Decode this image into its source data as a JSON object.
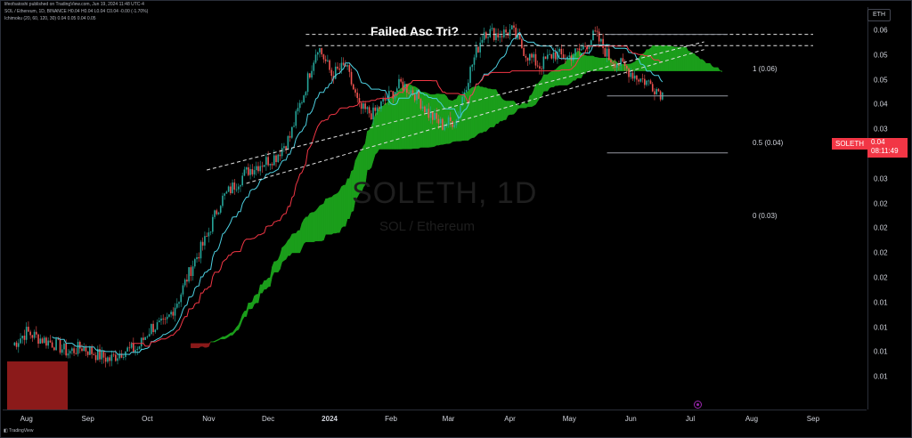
{
  "header": {
    "line1": "lifeofsatoshi published on TradingView.com, Jun 19, 2024 11:48 UTC-4",
    "line2": "SOL / Ethereum, 1D, BINANCE  H0.04  H0.04  L0.04  C0.04  -0.00 (-1.70%)",
    "line3": "Ichimoku (20, 60, 120, 30)  0.04  0.05  0.04  0.05"
  },
  "footer": {
    "logo_text": "TradingView"
  },
  "axis_unit": "ETH",
  "annotations": {
    "title": "Failed Asc Tri?",
    "watermark_symbol": "SOLETH, 1D",
    "watermark_name": "SOL / Ethereum",
    "fib_1": "1 (0.06)",
    "fib_05": "0.5 (0.04)",
    "fib_0": "0 (0.03)"
  },
  "last_price": {
    "symbol": "SOLETH",
    "value": "0.04",
    "countdown": "08:11:49"
  },
  "colors": {
    "candle_up": "#26a69a",
    "candle_down": "#ef5350",
    "conversion_line": "#4dd0e1",
    "base_line": "#f23645",
    "cloud_bull": "#1b9e1b",
    "cloud_bear": "#8b1a1a",
    "trendline": "#e0e0e0",
    "badge": "#f23645"
  },
  "chart_data": {
    "type": "candlestick",
    "title": "Failed Asc Tri?",
    "symbol": "SOLETH",
    "interval": "1D",
    "y_tick_labels": [
      "0.06",
      "0.05",
      "0.05",
      "0.04",
      "0.03",
      "0.03",
      "0.03",
      "0.02",
      "0.02",
      "0.02",
      "0.02",
      "0.01",
      "0.01",
      "0.01",
      "0.01"
    ],
    "x_tick_labels": [
      "Aug",
      "Sep",
      "Oct",
      "Nov",
      "Dec",
      "2024",
      "Feb",
      "Mar",
      "Apr",
      "May",
      "Jun",
      "Jul",
      "Aug",
      "Sep"
    ],
    "ylim": [
      0.0085,
      0.063
    ],
    "log_scale": true,
    "grid": false,
    "close_series": [
      {
        "date": "2023-07-25",
        "close": 0.0117
      },
      {
        "date": "2023-08-01",
        "close": 0.0125
      },
      {
        "date": "2023-08-08",
        "close": 0.0121
      },
      {
        "date": "2023-08-15",
        "close": 0.0118
      },
      {
        "date": "2023-08-22",
        "close": 0.0113
      },
      {
        "date": "2023-08-29",
        "close": 0.0116
      },
      {
        "date": "2023-09-05",
        "close": 0.0112
      },
      {
        "date": "2023-09-12",
        "close": 0.0109
      },
      {
        "date": "2023-09-19",
        "close": 0.0114
      },
      {
        "date": "2023-09-26",
        "close": 0.0115
      },
      {
        "date": "2023-10-03",
        "close": 0.0128
      },
      {
        "date": "2023-10-10",
        "close": 0.013
      },
      {
        "date": "2023-10-17",
        "close": 0.0148
      },
      {
        "date": "2023-10-24",
        "close": 0.0175
      },
      {
        "date": "2023-10-31",
        "close": 0.02
      },
      {
        "date": "2023-11-07",
        "close": 0.024
      },
      {
        "date": "2023-11-14",
        "close": 0.026
      },
      {
        "date": "2023-11-21",
        "close": 0.028
      },
      {
        "date": "2023-11-28",
        "close": 0.029
      },
      {
        "date": "2023-12-05",
        "close": 0.03
      },
      {
        "date": "2023-12-12",
        "close": 0.033
      },
      {
        "date": "2023-12-19",
        "close": 0.041
      },
      {
        "date": "2023-12-26",
        "close": 0.052
      },
      {
        "date": "2024-01-02",
        "close": 0.045
      },
      {
        "date": "2024-01-09",
        "close": 0.047
      },
      {
        "date": "2024-01-16",
        "close": 0.038
      },
      {
        "date": "2024-01-23",
        "close": 0.037
      },
      {
        "date": "2024-01-30",
        "close": 0.04
      },
      {
        "date": "2024-02-06",
        "close": 0.043
      },
      {
        "date": "2024-02-13",
        "close": 0.041
      },
      {
        "date": "2024-02-20",
        "close": 0.037
      },
      {
        "date": "2024-02-27",
        "close": 0.035
      },
      {
        "date": "2024-03-05",
        "close": 0.036
      },
      {
        "date": "2024-03-12",
        "close": 0.046
      },
      {
        "date": "2024-03-19",
        "close": 0.056
      },
      {
        "date": "2024-03-26",
        "close": 0.055
      },
      {
        "date": "2024-04-02",
        "close": 0.056
      },
      {
        "date": "2024-04-09",
        "close": 0.05
      },
      {
        "date": "2024-04-16",
        "close": 0.047
      },
      {
        "date": "2024-04-23",
        "close": 0.05
      },
      {
        "date": "2024-04-30",
        "close": 0.049
      },
      {
        "date": "2024-05-07",
        "close": 0.051
      },
      {
        "date": "2024-05-14",
        "close": 0.055
      },
      {
        "date": "2024-05-21",
        "close": 0.049
      },
      {
        "date": "2024-05-28",
        "close": 0.047
      },
      {
        "date": "2024-06-04",
        "close": 0.0445
      },
      {
        "date": "2024-06-11",
        "close": 0.043
      },
      {
        "date": "2024-06-18",
        "close": 0.0405
      }
    ],
    "fib_levels": [
      {
        "label": "1 (0.06)",
        "value": 0.055
      },
      {
        "label": "0.5 (0.04)",
        "value": 0.0405
      },
      {
        "label": "0 (0.03)",
        "value": 0.0305
      }
    ],
    "resistance": [
      0.055,
      0.052
    ],
    "trendline": [
      {
        "date": "2023-10-31",
        "value": 0.028
      },
      {
        "date": "2024-07-08",
        "value": 0.053
      }
    ],
    "last_value": 0.04
  }
}
